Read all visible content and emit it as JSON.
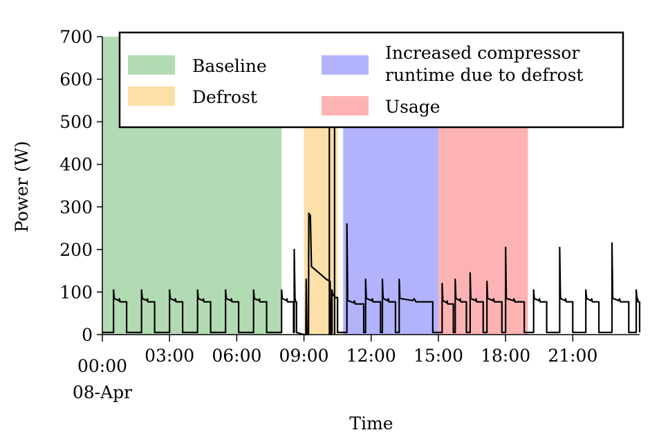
{
  "chart_data": {
    "type": "area",
    "xlabel": "Time",
    "ylabel": "Power (W)",
    "xlim": [
      "00:00",
      "23:59"
    ],
    "ylim": [
      0,
      700
    ],
    "grid": false,
    "legend_placement": "top-right",
    "y_ticks": [
      "0",
      "100",
      "200",
      "300",
      "400",
      "500",
      "600",
      "700"
    ],
    "x_ticks": [
      {
        "time": "00:00",
        "label": "00:00",
        "sublabel": "08-Apr"
      },
      {
        "time": "03:00",
        "label": "03:00"
      },
      {
        "time": "06:00",
        "label": "06:00"
      },
      {
        "time": "09:00",
        "label": "09:00"
      },
      {
        "time": "12:00",
        "label": "12:00"
      },
      {
        "time": "15:00",
        "label": "15:00"
      },
      {
        "time": "18:00",
        "label": "18:00"
      },
      {
        "time": "21:00",
        "label": "21:00"
      }
    ],
    "regions": [
      {
        "name": "Baseline",
        "label_lines": [
          "Baseline"
        ],
        "start": "00:00",
        "end": "08:00",
        "color": "#b3dbb3"
      },
      {
        "name": "Defrost",
        "label_lines": [
          "Defrost"
        ],
        "start": "09:00",
        "end": "10:30",
        "color": "#fddfa9"
      },
      {
        "name": "Increased compressor runtime due to defrost",
        "label_lines": [
          "Increased compressor",
          "runtime due to defrost"
        ],
        "start": "10:45",
        "end": "15:00",
        "color": "#b3b3fd"
      },
      {
        "name": "Usage",
        "label_lines": [
          "Usage"
        ],
        "start": "15:00",
        "end": "19:00",
        "color": "#fdb3b3"
      }
    ],
    "series": [
      {
        "color": "#000000",
        "cycles": [
          {
            "on": "00:30",
            "off": "01:05",
            "peak": 105,
            "level": 80
          },
          {
            "on": "01:45",
            "off": "02:20",
            "peak": 105,
            "level": 80
          },
          {
            "on": "03:00",
            "off": "03:35",
            "peak": 105,
            "level": 80
          },
          {
            "on": "04:15",
            "off": "04:50",
            "peak": 105,
            "level": 80
          },
          {
            "on": "05:30",
            "off": "06:05",
            "peak": 105,
            "level": 80
          },
          {
            "on": "06:45",
            "off": "07:20",
            "peak": 105,
            "level": 80
          },
          {
            "on": "08:00",
            "off": "08:32",
            "peak": 105,
            "level": 80
          },
          {
            "on": "08:34",
            "off": "08:40",
            "peak": 200,
            "level": 80
          },
          {
            "on": "10:15",
            "off": "10:30",
            "peak": 105,
            "level": 90
          },
          {
            "on": "10:55",
            "off": "11:40",
            "peak": 260,
            "level": 75
          },
          {
            "on": "11:45",
            "off": "12:25",
            "peak": 130,
            "level": 80
          },
          {
            "on": "12:30",
            "off": "13:05",
            "peak": 130,
            "level": 80
          },
          {
            "on": "13:15",
            "off": "14:45",
            "peak": 130,
            "level": 80
          },
          {
            "on": "15:10",
            "off": "15:40",
            "peak": 120,
            "level": 75
          },
          {
            "on": "15:45",
            "off": "16:15",
            "peak": 130,
            "level": 80
          },
          {
            "on": "16:25",
            "off": "17:00",
            "peak": 145,
            "level": 80
          },
          {
            "on": "17:10",
            "off": "17:50",
            "peak": 125,
            "level": 80
          },
          {
            "on": "18:00",
            "off": "18:50",
            "peak": 205,
            "level": 80
          },
          {
            "on": "19:15",
            "off": "19:50",
            "peak": 105,
            "level": 80
          },
          {
            "on": "20:25",
            "off": "21:00",
            "peak": 205,
            "level": 80
          },
          {
            "on": "21:35",
            "off": "22:10",
            "peak": 105,
            "level": 80
          },
          {
            "on": "22:45",
            "off": "23:30",
            "peak": 215,
            "level": 80
          },
          {
            "on": "23:50",
            "off": "23:59",
            "peak": 105,
            "level": 80
          }
        ],
        "defrost_trace": [
          {
            "time": "09:00",
            "value": 0
          },
          {
            "time": "09:05",
            "value": 0
          },
          {
            "time": "09:06",
            "value": 130
          },
          {
            "time": "09:08",
            "value": 0
          },
          {
            "time": "09:12",
            "value": 0
          },
          {
            "time": "09:13",
            "value": 285
          },
          {
            "time": "09:17",
            "value": 280
          },
          {
            "time": "09:20",
            "value": 160
          },
          {
            "time": "09:40",
            "value": 145
          },
          {
            "time": "10:00",
            "value": 130
          },
          {
            "time": "10:10",
            "value": 125
          },
          {
            "time": "10:12",
            "value": 0
          },
          {
            "time": "10:14",
            "value": 0
          }
        ],
        "spikes": [
          {
            "time": "10:08",
            "value": 700
          },
          {
            "time": "10:22",
            "value": 700
          }
        ]
      }
    ]
  }
}
